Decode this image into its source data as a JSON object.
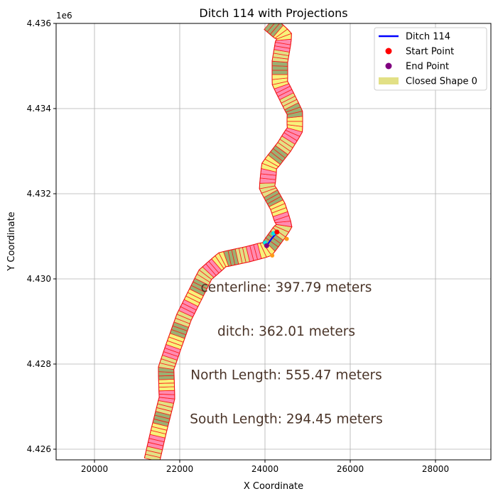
{
  "chart_data": {
    "type": "line",
    "title": "Ditch 114 with Projections",
    "xlabel": "X Coordinate",
    "ylabel": "Y Coordinate",
    "y_offset_label": "1e6",
    "xlim": [
      19100,
      29300
    ],
    "ylim": [
      4.42575,
      4.436
    ],
    "grid": true,
    "legend_position": "top-right",
    "x_ticks": [
      20000,
      22000,
      24000,
      26000,
      28000
    ],
    "x_tick_labels": [
      "20000",
      "22000",
      "24000",
      "26000",
      "28000"
    ],
    "y_ticks": [
      4.426,
      4.428,
      4.43,
      4.432,
      4.434,
      4.436
    ],
    "y_tick_labels": [
      "4.426",
      "4.428",
      "4.430",
      "4.432",
      "4.434",
      "4.436"
    ],
    "legend": [
      {
        "label": "Ditch 114",
        "kind": "line",
        "color": "#0000ff"
      },
      {
        "label": "Start Point",
        "kind": "dot",
        "color": "#ff0000"
      },
      {
        "label": "End Point",
        "kind": "dot",
        "color": "#800080"
      },
      {
        "label": "Closed Shape 0",
        "kind": "patch",
        "color": "#e2e085"
      }
    ],
    "annotations": [
      {
        "text": "centerline: 397.79 meters",
        "x": 24500,
        "y": 4.4298
      },
      {
        "text": "ditch: 362.01 meters",
        "x": 24500,
        "y": 4.42877
      },
      {
        "text": "North Length: 555.47 meters",
        "x": 24500,
        "y": 4.42774
      },
      {
        "text": "South Length: 294.45 meters",
        "x": 24500,
        "y": 4.42671
      }
    ],
    "river_centerline": [
      {
        "x": 21350,
        "y": 4.42575
      },
      {
        "x": 21500,
        "y": 4.4264
      },
      {
        "x": 21700,
        "y": 4.4272
      },
      {
        "x": 21680,
        "y": 4.4279
      },
      {
        "x": 21850,
        "y": 4.4284
      },
      {
        "x": 22100,
        "y": 4.4291
      },
      {
        "x": 22350,
        "y": 4.4296
      },
      {
        "x": 22600,
        "y": 4.4301
      },
      {
        "x": 23000,
        "y": 4.43045
      },
      {
        "x": 23600,
        "y": 4.43058
      },
      {
        "x": 24050,
        "y": 4.4307
      },
      {
        "x": 24450,
        "y": 4.43125
      },
      {
        "x": 24300,
        "y": 4.4317
      },
      {
        "x": 24050,
        "y": 4.43215
      },
      {
        "x": 24100,
        "y": 4.43265
      },
      {
        "x": 24450,
        "y": 4.4331
      },
      {
        "x": 24700,
        "y": 4.4335
      },
      {
        "x": 24700,
        "y": 4.4339
      },
      {
        "x": 24350,
        "y": 4.4346
      },
      {
        "x": 24350,
        "y": 4.4351
      },
      {
        "x": 24450,
        "y": 4.4357
      },
      {
        "x": 24100,
        "y": 4.436
      }
    ],
    "ditch_line": [
      {
        "x": 24040,
        "y": 4.43078
      },
      {
        "x": 24160,
        "y": 4.43095
      },
      {
        "x": 24270,
        "y": 4.43108
      }
    ],
    "start_point": {
      "x": 24280,
      "y": 4.4311
    },
    "end_point": {
      "x": 24040,
      "y": 4.43078
    },
    "projection_points": [
      {
        "x": 24200,
        "y": 4.43107,
        "color": "#00e5e5"
      },
      {
        "x": 24000,
        "y": 4.43085,
        "color": "#00e5e5"
      },
      {
        "x": 24510,
        "y": 4.43094,
        "color": "#ff9a1a"
      },
      {
        "x": 24170,
        "y": 4.43055,
        "color": "#ff9a1a"
      }
    ],
    "shape_palette": [
      "#e2e085",
      "#d4a6d4",
      "#ff4d9a",
      "#9bb072",
      "#b9b6e2",
      "#f06fa0",
      "#f7f27a",
      "#c7c2bd",
      "#9f7fd1",
      "#ff8ab0",
      "#7da5c0",
      "#e9d9b0"
    ]
  }
}
